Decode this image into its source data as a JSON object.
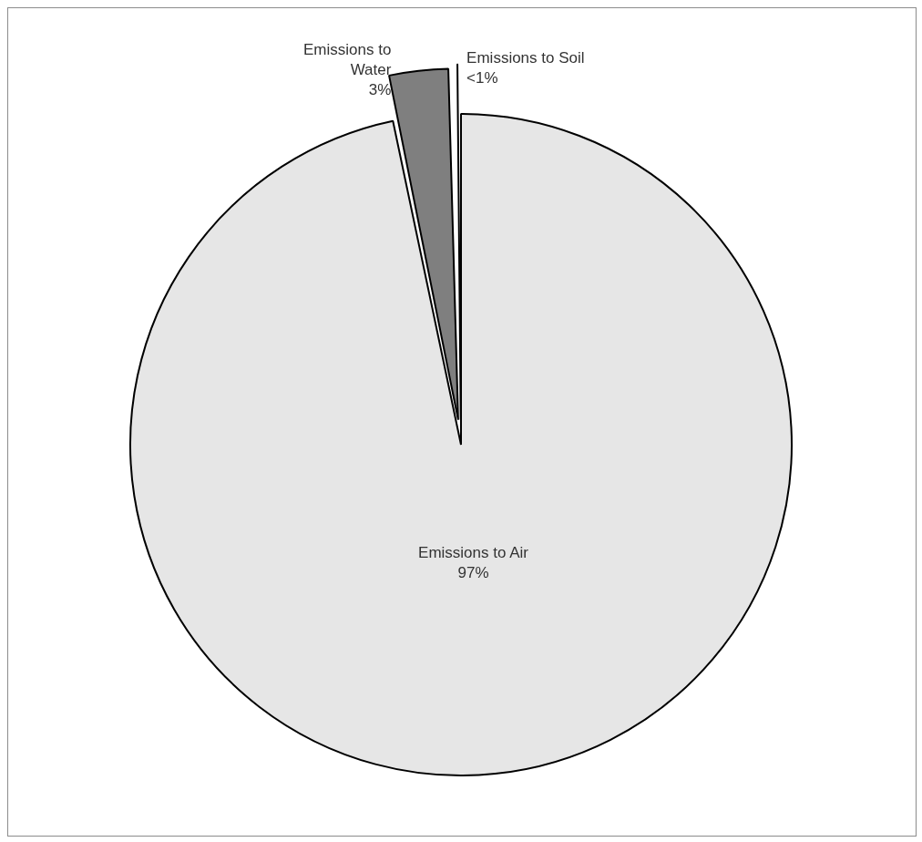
{
  "chart_data": {
    "type": "pie",
    "categories": [
      "Emissions to Air",
      "Emissions to Water",
      "Emissions to Soil"
    ],
    "values": [
      96.7,
      3,
      0.3
    ],
    "colors": [
      "#e6e6e6",
      "#7f7f7f",
      "#ffffff"
    ],
    "value_labels": [
      "97%",
      "3%",
      "<1%"
    ]
  }
}
